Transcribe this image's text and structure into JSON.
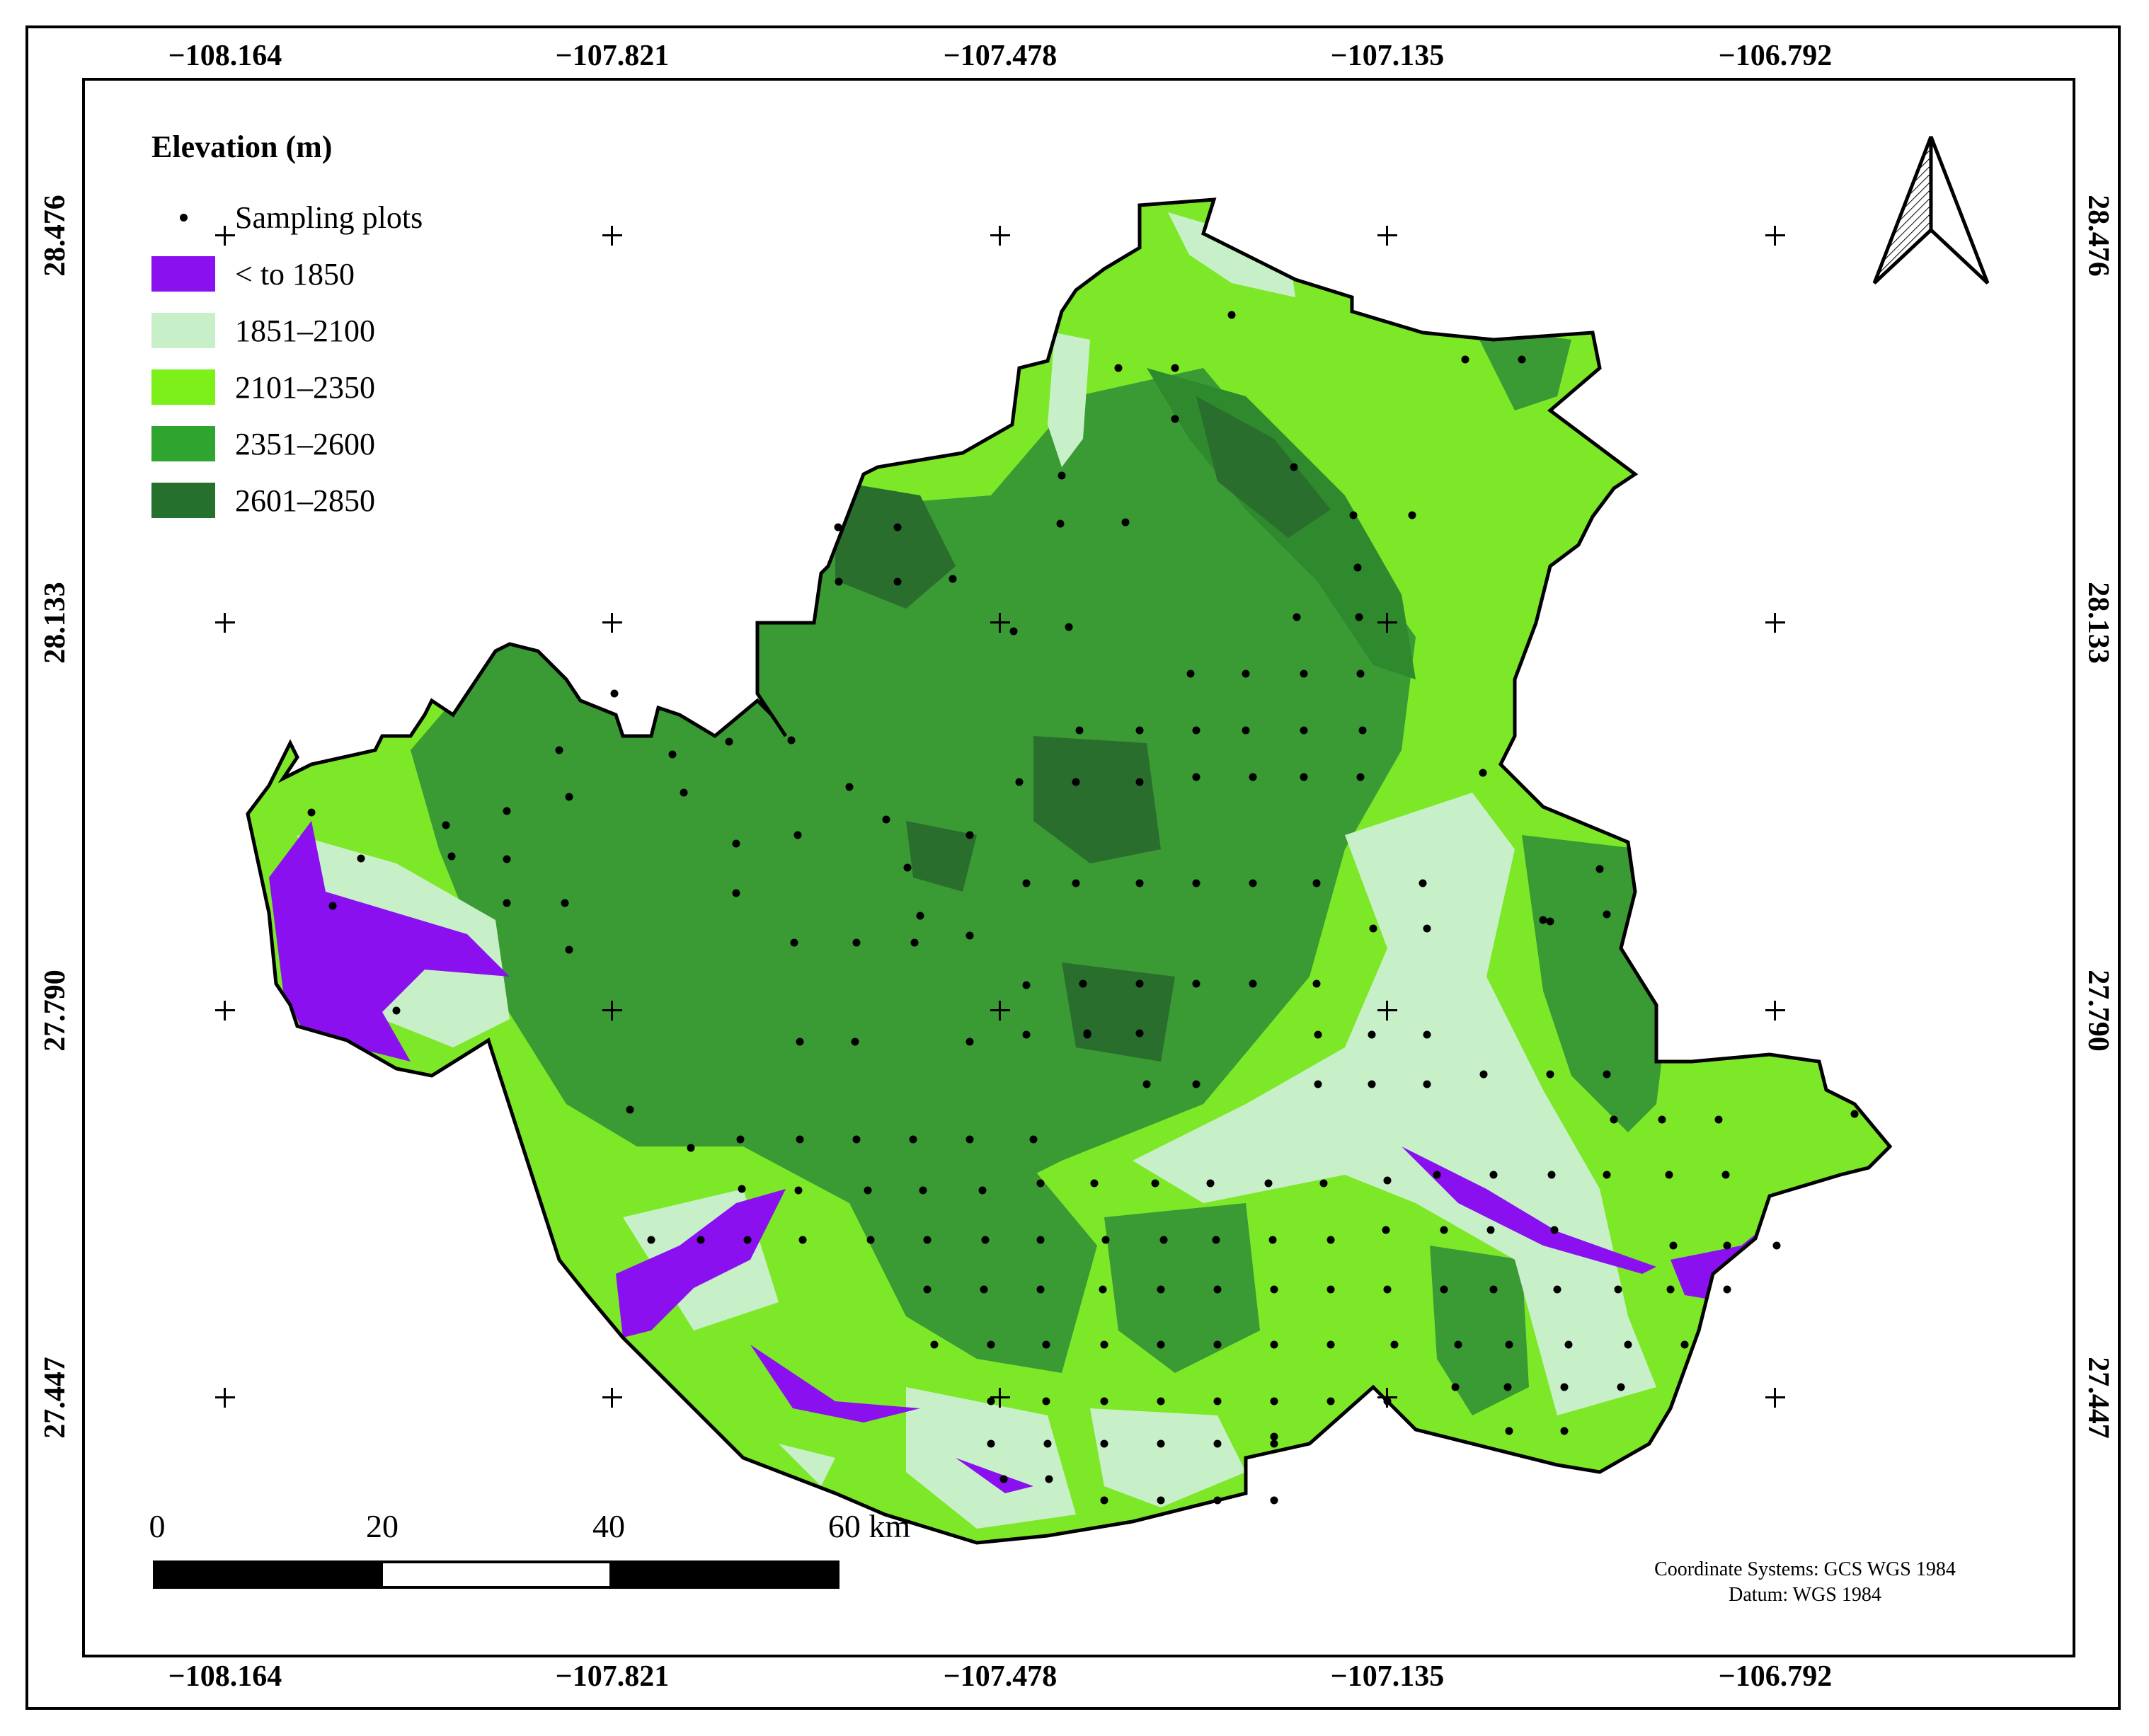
{
  "longitudes": [
    "−108.164",
    "−107.821",
    "−107.478",
    "−107.135",
    "−106.792"
  ],
  "latitudes": [
    "28.476",
    "28.133",
    "27.790",
    "27.447"
  ],
  "legend": {
    "title": "Elevation (m)",
    "items": [
      {
        "label": "Sampling plots",
        "kind": "point",
        "color": "#000000"
      },
      {
        "label": "< to 1850",
        "kind": "class",
        "color": "#8a10f0"
      },
      {
        "label": "1851–2100",
        "kind": "class",
        "color": "#c8f0c8"
      },
      {
        "label": "2101–2350",
        "kind": "class",
        "color": "#7cf018"
      },
      {
        "label": "2351–2600",
        "kind": "class",
        "color": "#2fa52f"
      },
      {
        "label": "2601–2850",
        "kind": "class",
        "color": "#24702c"
      }
    ]
  },
  "scale": {
    "ticks": [
      "0",
      "20",
      "40",
      "60 km"
    ]
  },
  "coordinate_note": {
    "line1": "Coordinate Systems: GCS WGS 1984",
    "line2": "Datum: WGS 1984"
  },
  "north_arrow_icon": "north-arrow-icon"
}
